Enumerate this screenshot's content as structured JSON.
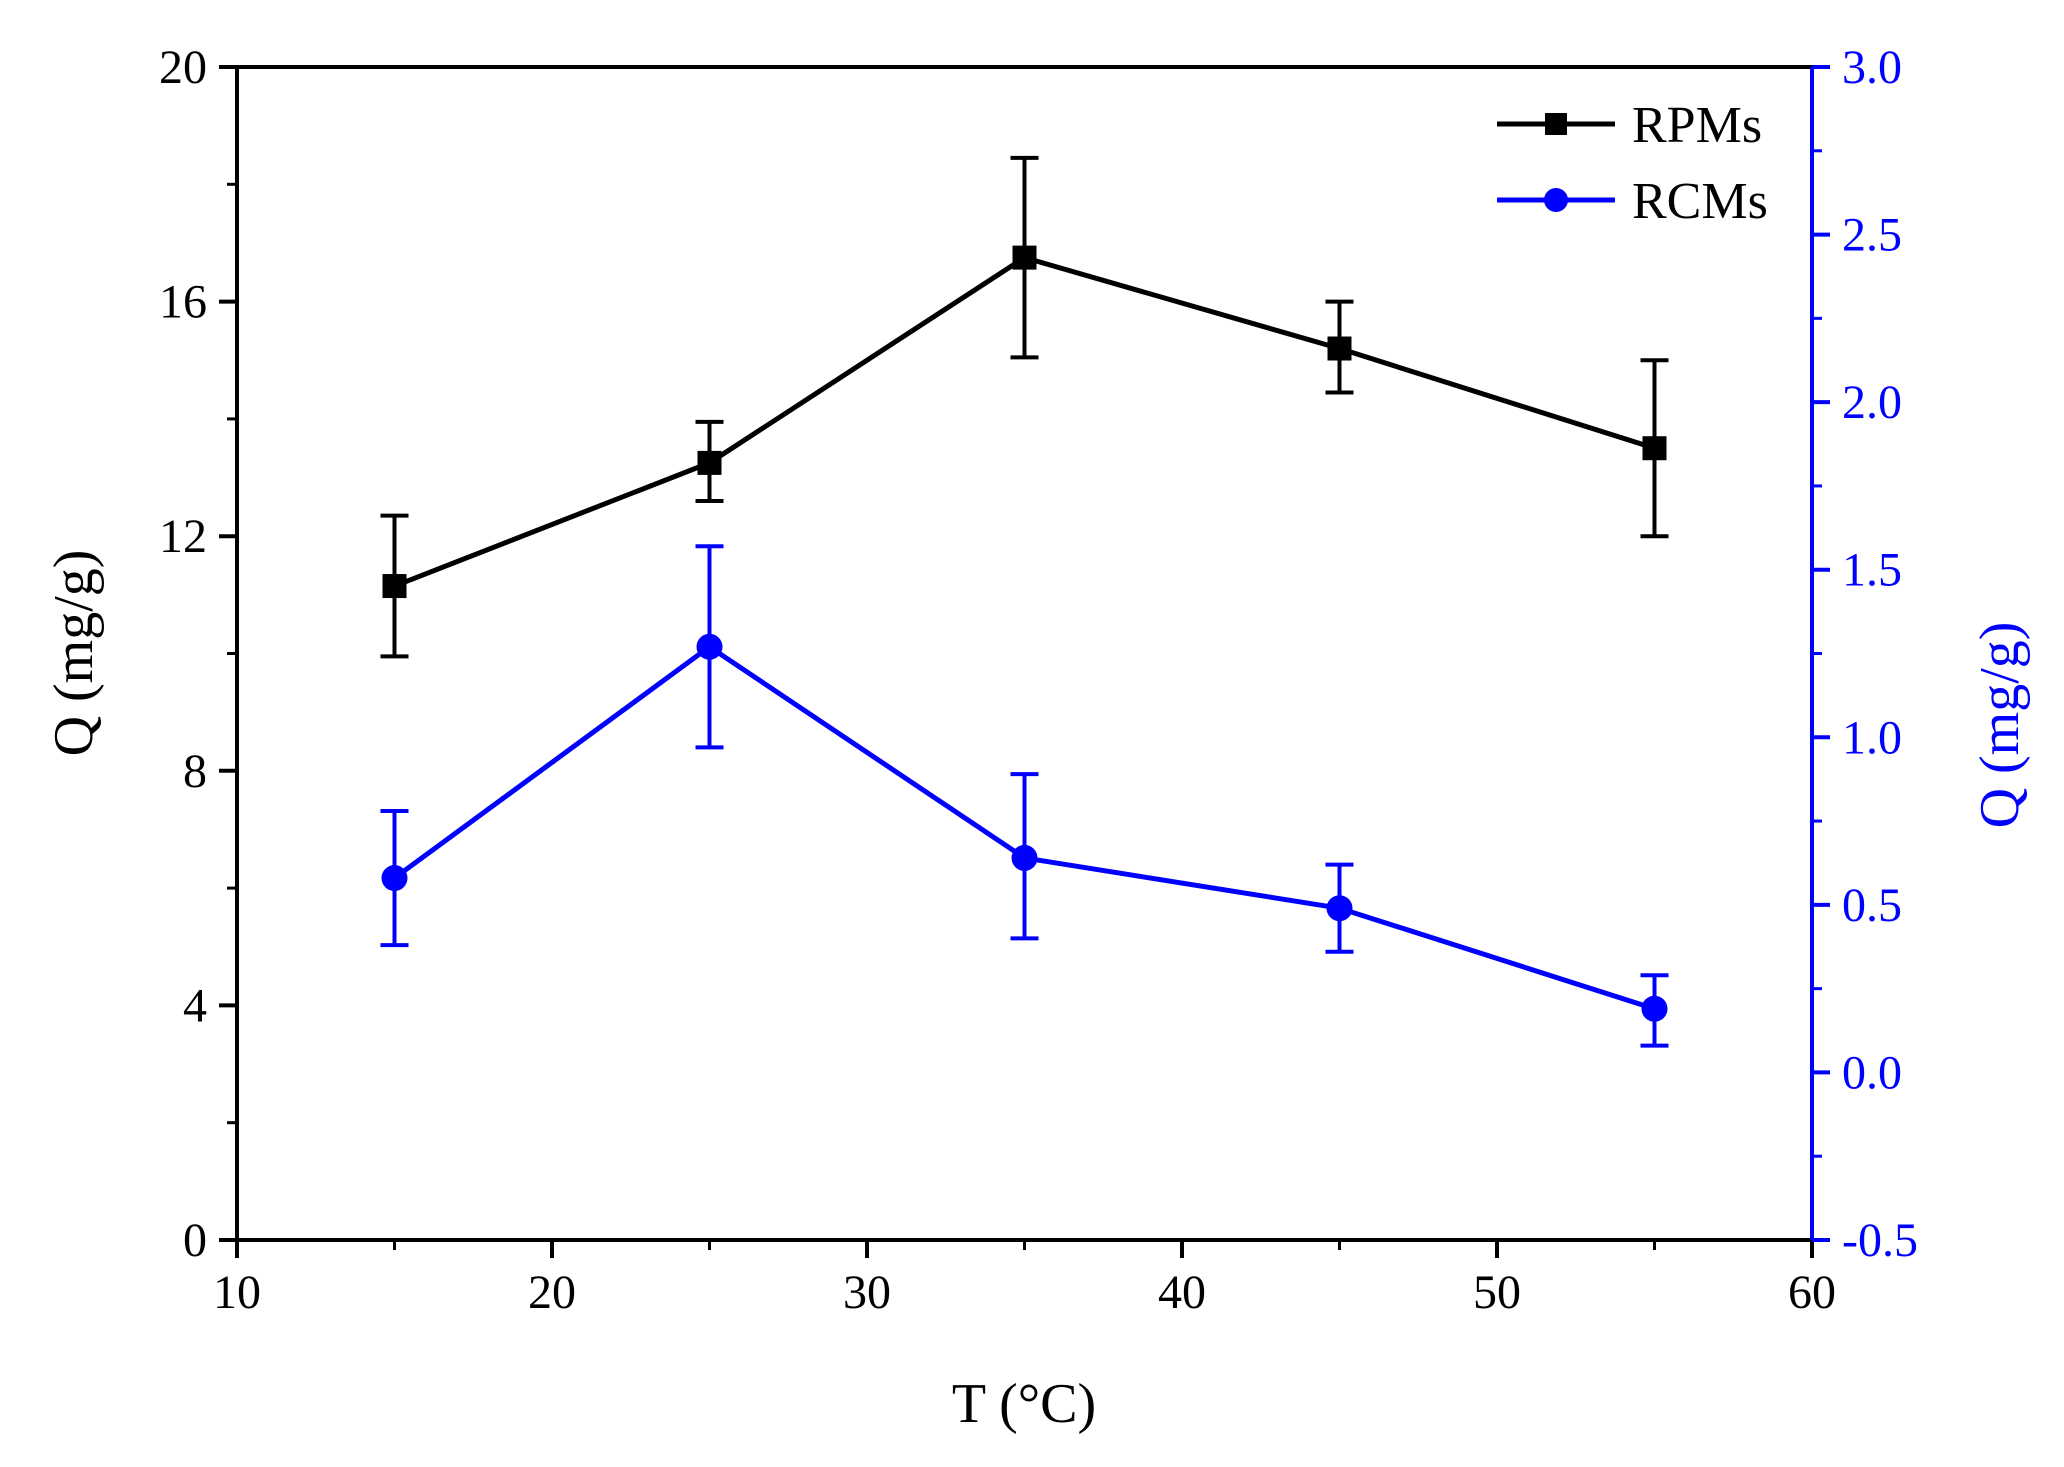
{
  "chart_data": {
    "type": "line",
    "xlabel": "T (°C)",
    "ylabel_left": "Q (mg/g)",
    "ylabel_right": "Q (mg/g)",
    "xlim": [
      10,
      60
    ],
    "ylim_left": [
      0,
      20
    ],
    "ylim_right": [
      -0.5,
      3.0
    ],
    "x_ticks": [
      10,
      20,
      30,
      40,
      50,
      60
    ],
    "x_tick_labels": [
      "10",
      "20",
      "30",
      "40",
      "50",
      "60"
    ],
    "y_left_ticks": [
      0,
      4,
      8,
      12,
      16,
      20
    ],
    "y_left_tick_labels": [
      "0",
      "4",
      "8",
      "12",
      "16",
      "20"
    ],
    "y_right_ticks": [
      -0.5,
      0.0,
      0.5,
      1.0,
      1.5,
      2.0,
      2.5,
      3.0
    ],
    "y_right_tick_labels": [
      "-0.5",
      "0.0",
      "0.5",
      "1.0",
      "1.5",
      "2.0",
      "2.5",
      "3.0"
    ],
    "legend_position": "top-right",
    "grid": false,
    "series": [
      {
        "name": "RPMs",
        "axis": "left",
        "color": "#000000",
        "marker": "square",
        "x": [
          15,
          25,
          35,
          45,
          55
        ],
        "values": [
          11.15,
          13.25,
          16.75,
          15.2,
          13.5
        ],
        "err_low": [
          9.95,
          12.6,
          15.05,
          14.45,
          12.0
        ],
        "err_high": [
          12.35,
          13.95,
          18.45,
          16.0,
          15.0
        ]
      },
      {
        "name": "RCMs",
        "axis": "right",
        "color": "#0000ff",
        "marker": "circle",
        "x": [
          15,
          25,
          35,
          45,
          55
        ],
        "values": [
          0.58,
          1.27,
          0.64,
          0.49,
          0.19
        ],
        "err_low": [
          0.38,
          0.97,
          0.4,
          0.36,
          0.08
        ],
        "err_high": [
          0.78,
          1.57,
          0.89,
          0.62,
          0.29
        ]
      }
    ]
  }
}
